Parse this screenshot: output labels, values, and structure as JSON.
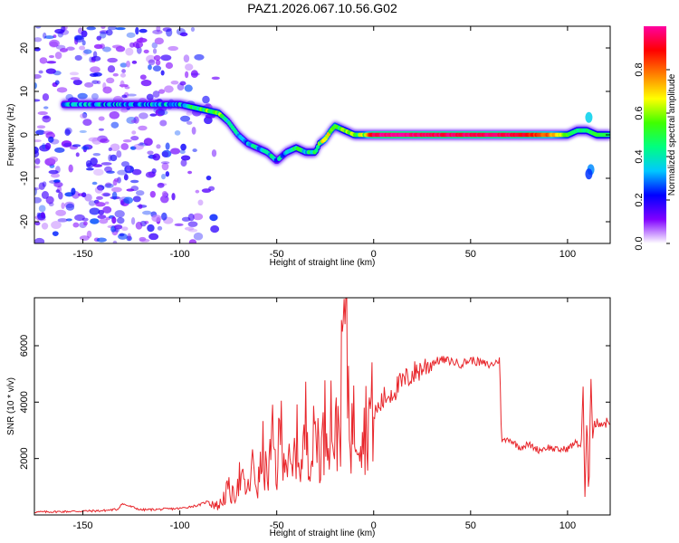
{
  "title": "PAZ1.2026.067.10.56.G02",
  "chart_data": [
    {
      "type": "heatmap",
      "title": "PAZ1.2026.067.10.56.G02",
      "xlabel": "Height of straight line (km)",
      "ylabel": "Frequency (Hz)",
      "xlim": [
        -175,
        122
      ],
      "ylim": [
        -25,
        25
      ],
      "x_ticks": [
        -150,
        -100,
        -50,
        0,
        50,
        100
      ],
      "y_ticks": [
        -20,
        -10,
        0,
        10,
        20
      ],
      "colorbar": {
        "label": "Normalized spectral amplitude",
        "range": [
          0,
          1
        ],
        "ticks": [
          0.0,
          0.2,
          0.4,
          0.6,
          0.8
        ],
        "tick_labels": [
          "0.0",
          "0.2",
          "0.4",
          "0.6",
          "0.8"
        ],
        "colormap": [
          "#ffffff",
          "#8000ff",
          "#0000ff",
          "#00c8ff",
          "#00ff80",
          "#40ff00",
          "#ffff00",
          "#ff8000",
          "#ff0000",
          "#ff00a0"
        ]
      },
      "ridge": {
        "x": [
          -160,
          -140,
          -120,
          -100,
          -90,
          -80,
          -75,
          -70,
          -65,
          -60,
          -55,
          -50,
          -45,
          -40,
          -35,
          -30,
          -28,
          -25,
          -22,
          -20,
          -15,
          -10,
          -5,
          0,
          10,
          30,
          50,
          70,
          90,
          100,
          105,
          110,
          115,
          122
        ],
        "y": [
          7,
          7,
          7,
          7,
          6,
          5,
          3,
          0,
          -2,
          -3,
          -4,
          -6,
          -4,
          -3,
          -4,
          -4,
          -2,
          -1,
          1,
          2,
          1,
          0,
          0,
          0,
          0,
          0,
          0,
          0,
          0,
          0,
          1,
          1,
          0,
          0
        ],
        "amplitude": [
          0.3,
          0.3,
          0.3,
          0.35,
          0.5,
          0.55,
          0.35,
          0.35,
          0.35,
          0.35,
          0.4,
          0.3,
          0.35,
          0.45,
          0.4,
          0.45,
          0.5,
          0.7,
          0.6,
          0.6,
          0.5,
          0.55,
          0.6,
          0.95,
          1.0,
          0.95,
          0.95,
          0.95,
          0.8,
          0.55,
          0.45,
          0.45,
          0.5,
          0.45
        ]
      }
    },
    {
      "type": "line",
      "xlabel": "Height of straight line (km)",
      "ylabel": "SNR (10 * v/v)",
      "xlim": [
        -175,
        122
      ],
      "ylim": [
        0,
        7700
      ],
      "x_ticks": [
        -150,
        -100,
        -50,
        0,
        50,
        100
      ],
      "y_ticks": [
        2000,
        4000,
        6000
      ],
      "color": "#e8262b",
      "series": [
        {
          "name": "SNR",
          "x": [
            -175,
            -160,
            -140,
            -132,
            -130,
            -120,
            -110,
            -100,
            -90,
            -85,
            -80,
            -75,
            -72,
            -70,
            -65,
            -62,
            -60,
            -57,
            -55,
            -52,
            -50,
            -48,
            -45,
            -42,
            -40,
            -37,
            -35,
            -32,
            -30,
            -27,
            -25,
            -22,
            -20,
            -17,
            -15,
            -12,
            -10,
            -7,
            -5,
            -2,
            0,
            5,
            10,
            15,
            20,
            25,
            30,
            35,
            40,
            45,
            50,
            55,
            60,
            64,
            65,
            66,
            70,
            75,
            80,
            85,
            90,
            95,
            100,
            103,
            105,
            107,
            108,
            109,
            110,
            111,
            112,
            113,
            114,
            115,
            116,
            118,
            122
          ],
          "values": [
            100,
            120,
            150,
            200,
            400,
            180,
            200,
            230,
            350,
            500,
            300,
            900,
            600,
            1400,
            800,
            1800,
            900,
            2200,
            1200,
            2600,
            1400,
            3200,
            2000,
            1300,
            2700,
            1600,
            3300,
            2000,
            3100,
            2200,
            3300,
            3600,
            2600,
            3700,
            7600,
            3000,
            3200,
            3500,
            3000,
            3700,
            3500,
            4100,
            4400,
            4700,
            5000,
            5200,
            5400,
            5500,
            5450,
            5350,
            5500,
            5400,
            5300,
            5450,
            5500,
            2600,
            2700,
            2400,
            2500,
            2300,
            2400,
            2300,
            2350,
            2500,
            2600,
            2400,
            4600,
            400,
            3500,
            400,
            5200,
            2800,
            3300,
            3200,
            3300,
            3250,
            3300
          ]
        }
      ]
    }
  ]
}
